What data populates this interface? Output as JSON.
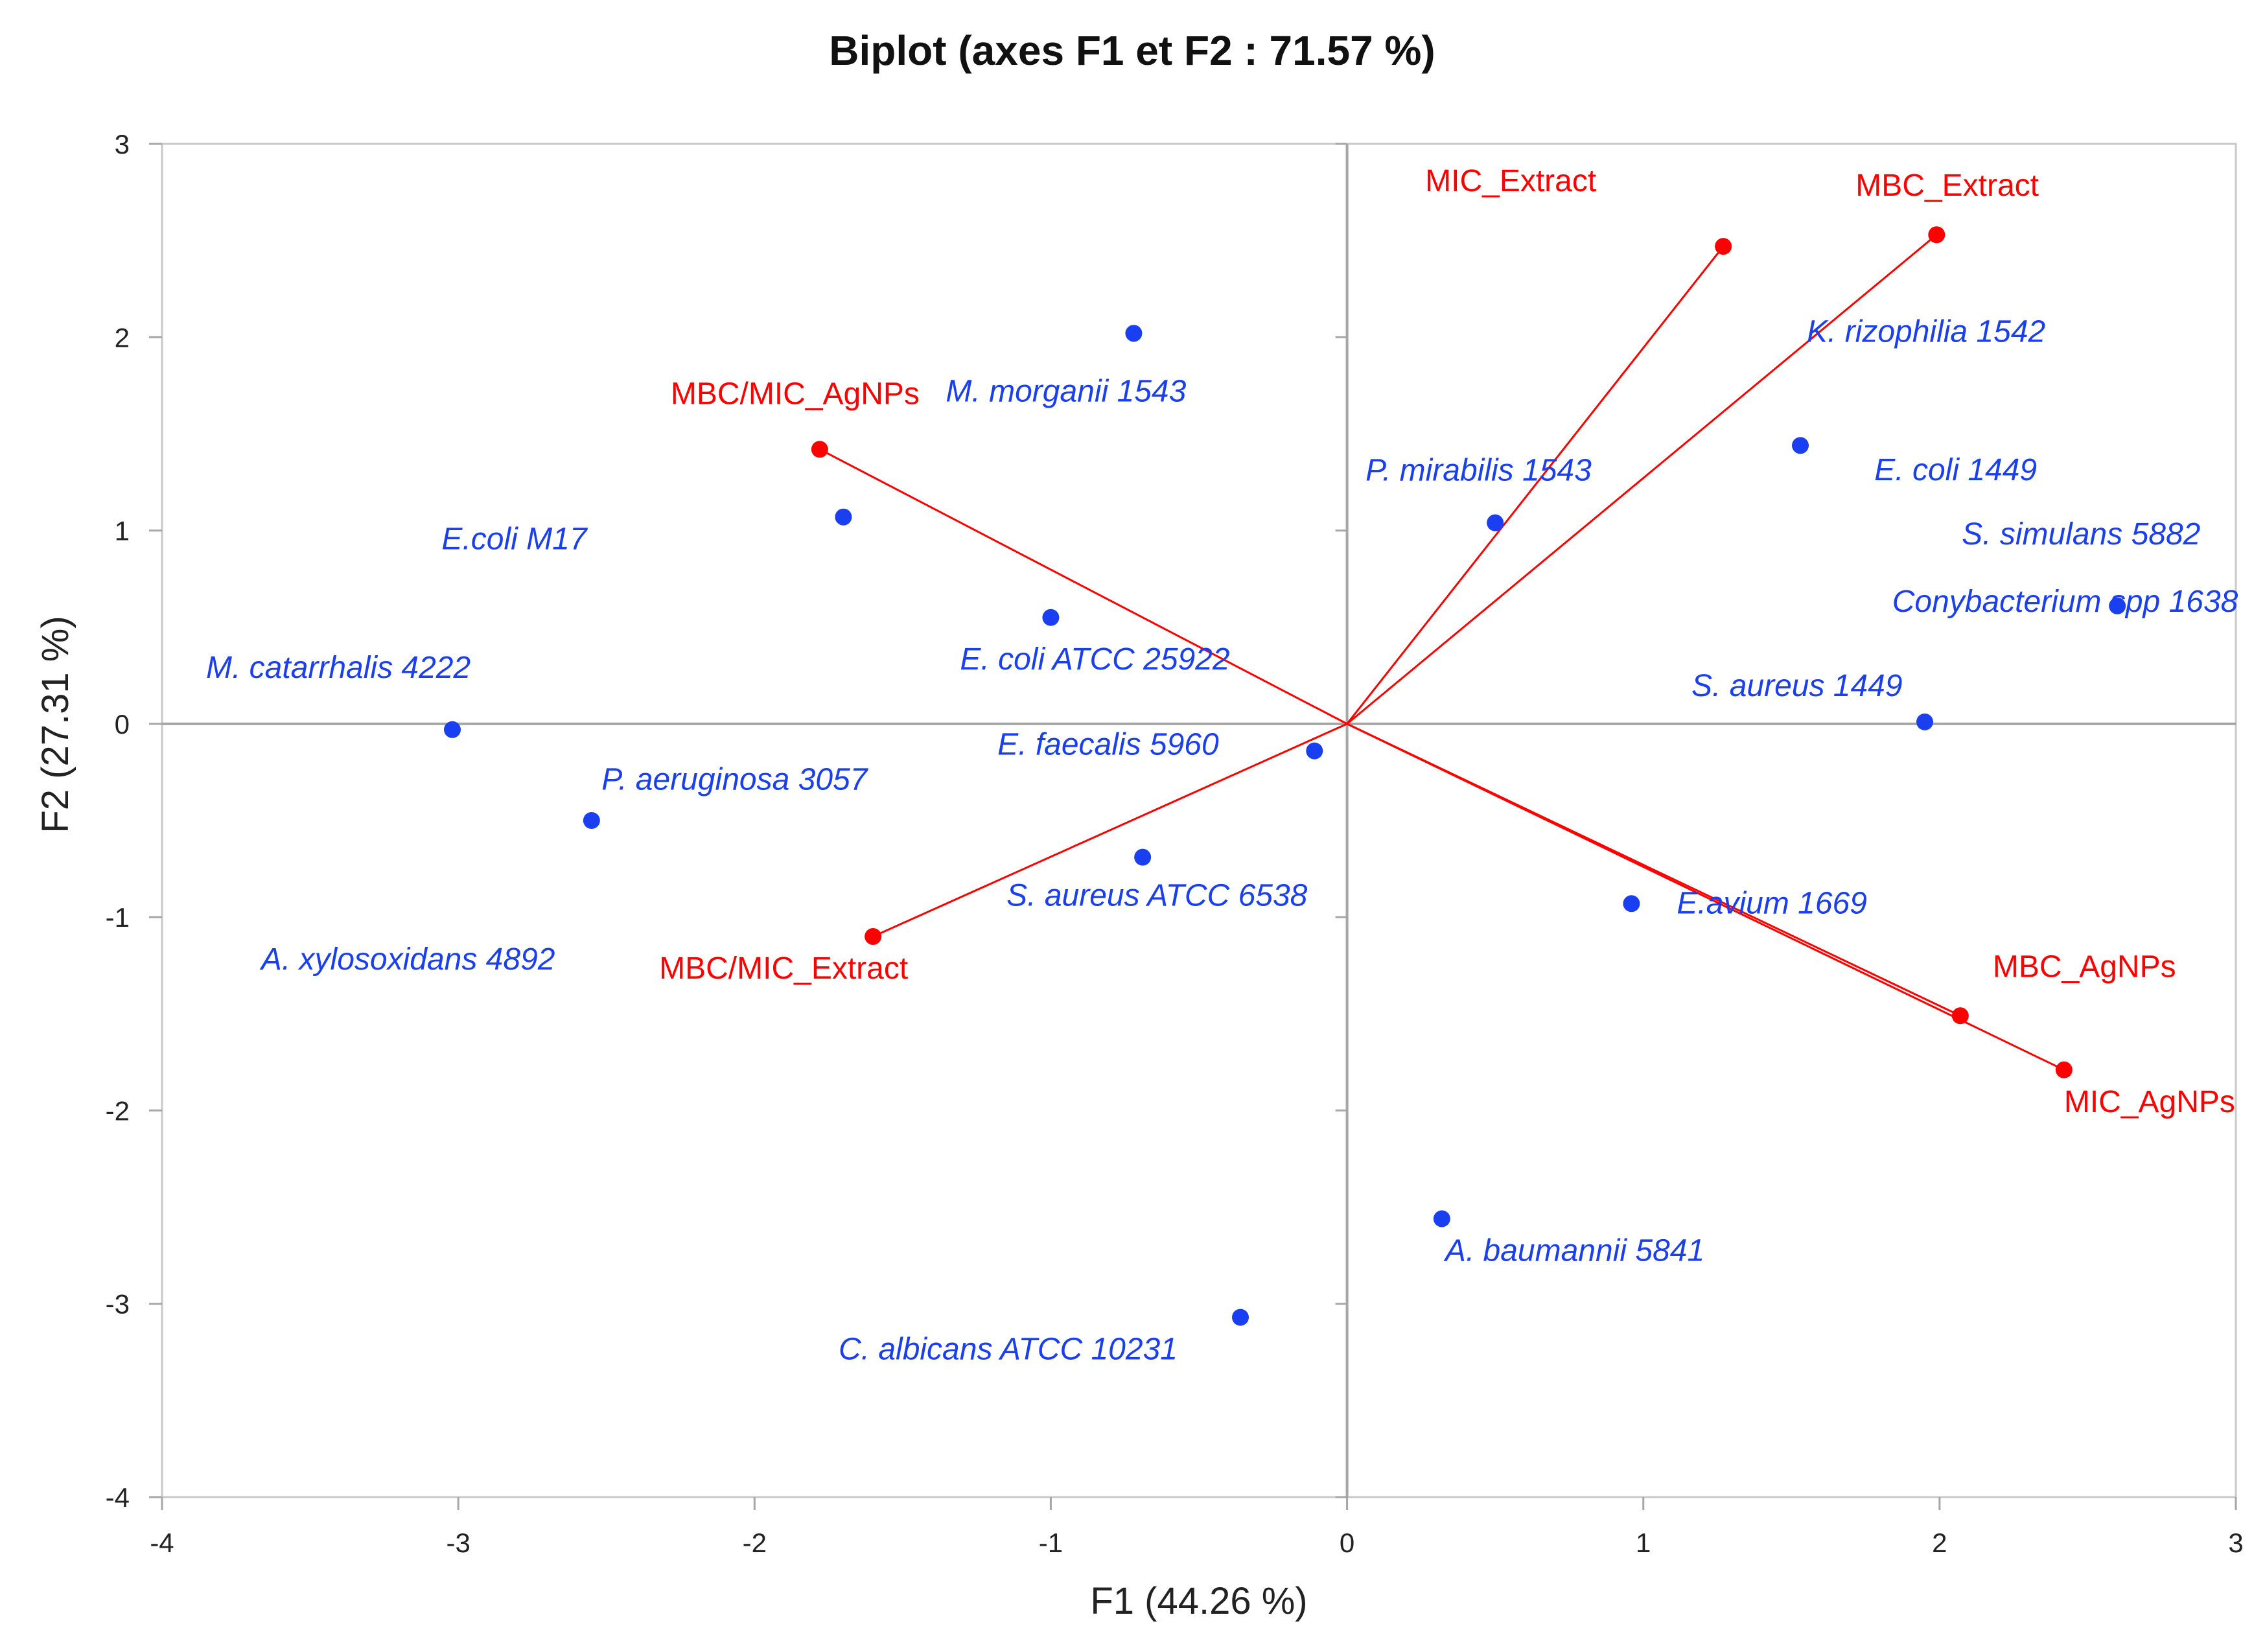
{
  "chart_data": {
    "type": "scatter",
    "title": "Biplot (axes F1 et F2 : 71.57 %)",
    "xlabel": "F1 (44.26 %)",
    "ylabel": "F2 (27.31 %)",
    "xlim": [
      -4,
      3
    ],
    "ylim": [
      -4,
      3
    ],
    "xticks": [
      -4,
      -3,
      -2,
      -1,
      0,
      1,
      2,
      3
    ],
    "yticks": [
      -4,
      -3,
      -2,
      -1,
      0,
      1,
      2,
      3
    ],
    "grid": false,
    "colors": {
      "observations": "#1a3ff0",
      "variables": "#ff0000",
      "axes": "#a6a6a6"
    },
    "observations": [
      {
        "label": "M. morganii 1543",
        "x": -0.72,
        "y": 2.02
      },
      {
        "label": "E.coli M17",
        "x": -1.7,
        "y": 1.07
      },
      {
        "label": "E. coli ATCC 25922",
        "x": -1.0,
        "y": 0.55
      },
      {
        "label": "M. catarrhalis 4222",
        "x": -3.02,
        "y": -0.03
      },
      {
        "label": "A. xylosoxidans 4892",
        "x": -2.55,
        "y": -0.5
      },
      {
        "label": "P. aeruginosa 3057",
        "x": -0.11,
        "y": -0.14
      },
      {
        "label": "S. aureus ATCC 6538",
        "x": -0.69,
        "y": -0.69
      },
      {
        "label": "C. albicans ATCC 10231",
        "x": -0.36,
        "y": -3.07
      },
      {
        "label": "P. mirabilis 1543",
        "x": 0.5,
        "y": 1.04
      },
      {
        "label": "K. rizophilia 1542",
        "x": 1.53,
        "y": 1.44
      },
      {
        "label": "S. simulans 5882",
        "x": 2.6,
        "y": 0.61
      },
      {
        "label": "S. aureus 1449",
        "x": 1.95,
        "y": 0.01
      },
      {
        "label": "E.avium 1669",
        "x": 0.96,
        "y": -0.93
      },
      {
        "label": "A. baumannii 5841",
        "x": 0.32,
        "y": -2.56
      }
    ],
    "extra_labels": [
      "E. coli 1449",
      "Conybacterium spp 1638",
      "E. faecalis 5960"
    ],
    "variables": [
      {
        "label": "MIC_Extract",
        "x": 1.27,
        "y": 2.47
      },
      {
        "label": "MBC_Extract",
        "x": 1.99,
        "y": 2.53
      },
      {
        "label": "MBC/MIC_AgNPs",
        "x": -1.78,
        "y": 1.42
      },
      {
        "label": "MBC/MIC_Extract",
        "x": -1.6,
        "y": -1.1
      },
      {
        "label": "MBC_AgNPs",
        "x": 2.07,
        "y": -1.51
      },
      {
        "label": "MIC_AgNPs",
        "x": 2.42,
        "y": -1.79
      }
    ]
  }
}
